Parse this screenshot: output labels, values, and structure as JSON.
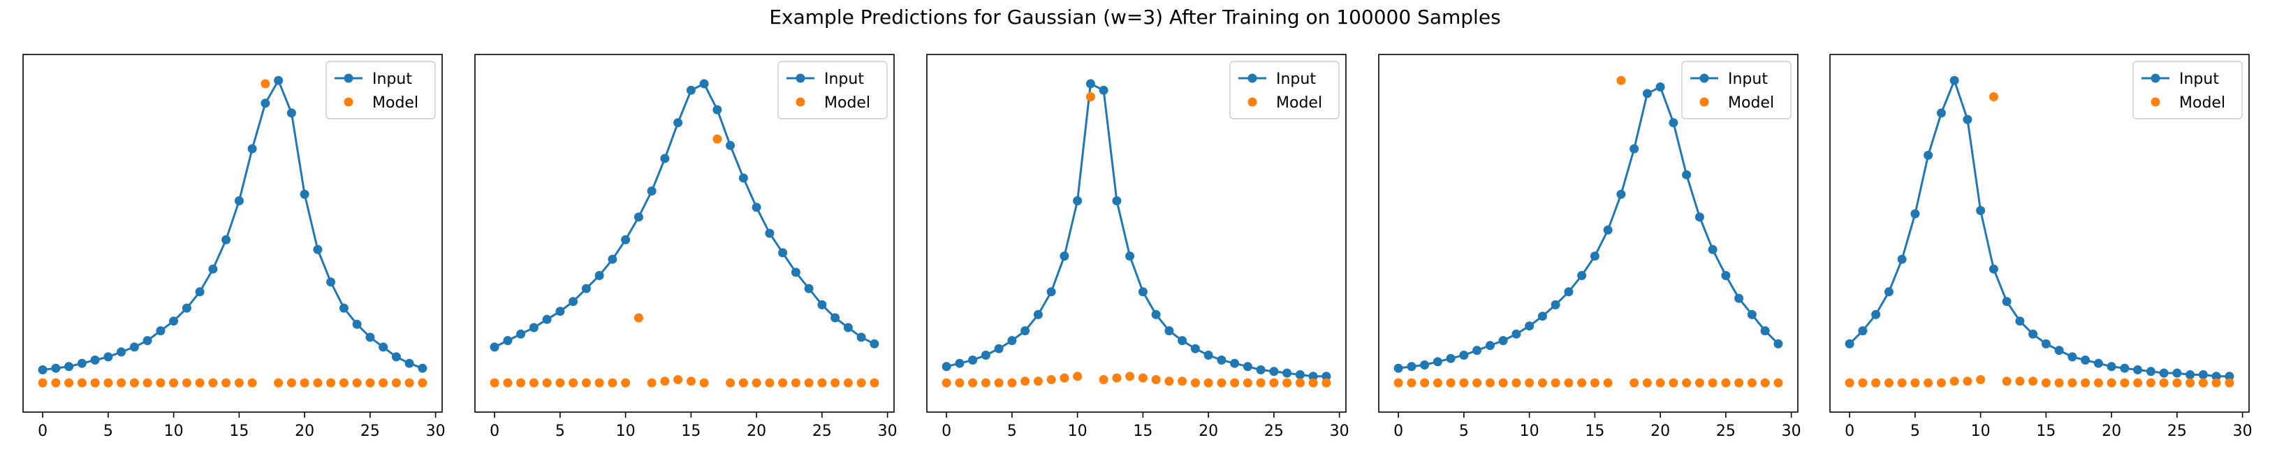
{
  "title": "Example Predictions for Gaussian (w=3) After Training on 100000 Samples",
  "colors": {
    "input": "#1f77b4",
    "model": "#ff7f0e"
  },
  "chart_data": [
    {
      "type": "line",
      "xlim": [
        -1.5,
        30.5
      ],
      "ylim": [
        -0.05,
        1.05
      ],
      "xticks": [
        "0",
        "5",
        "10",
        "15",
        "20",
        "25",
        "30"
      ],
      "legend": {
        "placement": "top-right",
        "entries": [
          "Input",
          "Model"
        ]
      },
      "series": [
        {
          "name": "Input",
          "style": "line-marker",
          "x": [
            0,
            1,
            2,
            3,
            4,
            5,
            6,
            7,
            8,
            9,
            10,
            11,
            12,
            13,
            14,
            15,
            16,
            17,
            18,
            19,
            20,
            21,
            22,
            23,
            24,
            25,
            26,
            27,
            28,
            29
          ],
          "y": [
            0.08,
            0.085,
            0.09,
            0.1,
            0.11,
            0.12,
            0.135,
            0.15,
            0.17,
            0.2,
            0.23,
            0.27,
            0.32,
            0.39,
            0.48,
            0.6,
            0.76,
            0.9,
            0.97,
            0.87,
            0.62,
            0.45,
            0.35,
            0.27,
            0.22,
            0.18,
            0.15,
            0.12,
            0.1,
            0.085
          ]
        },
        {
          "name": "Model",
          "style": "marker",
          "x": [
            0,
            1,
            2,
            3,
            4,
            5,
            6,
            7,
            8,
            9,
            10,
            11,
            12,
            13,
            14,
            15,
            16,
            17,
            18,
            19,
            20,
            21,
            22,
            23,
            24,
            25,
            26,
            27,
            28,
            29
          ],
          "y": [
            0.04,
            0.04,
            0.04,
            0.04,
            0.04,
            0.04,
            0.04,
            0.04,
            0.04,
            0.04,
            0.04,
            0.04,
            0.04,
            0.04,
            0.04,
            0.04,
            0.04,
            0.96,
            0.04,
            0.04,
            0.04,
            0.04,
            0.04,
            0.04,
            0.04,
            0.04,
            0.04,
            0.04,
            0.04,
            0.04
          ]
        }
      ]
    },
    {
      "type": "line",
      "xlim": [
        -1.5,
        30.5
      ],
      "ylim": [
        -0.05,
        1.05
      ],
      "xticks": [
        "0",
        "5",
        "10",
        "15",
        "20",
        "25",
        "30"
      ],
      "legend": {
        "placement": "top-right",
        "entries": [
          "Input",
          "Model"
        ]
      },
      "series": [
        {
          "name": "Input",
          "style": "line-marker",
          "x": [
            0,
            1,
            2,
            3,
            4,
            5,
            6,
            7,
            8,
            9,
            10,
            11,
            12,
            13,
            14,
            15,
            16,
            17,
            18,
            19,
            20,
            21,
            22,
            23,
            24,
            25,
            26,
            27,
            28,
            29
          ],
          "y": [
            0.15,
            0.17,
            0.19,
            0.21,
            0.235,
            0.26,
            0.29,
            0.33,
            0.37,
            0.42,
            0.48,
            0.55,
            0.63,
            0.73,
            0.84,
            0.94,
            0.96,
            0.88,
            0.77,
            0.67,
            0.58,
            0.5,
            0.44,
            0.38,
            0.33,
            0.28,
            0.24,
            0.21,
            0.18,
            0.16
          ]
        },
        {
          "name": "Model",
          "style": "marker",
          "x": [
            0,
            1,
            2,
            3,
            4,
            5,
            6,
            7,
            8,
            9,
            10,
            11,
            12,
            13,
            14,
            15,
            16,
            17,
            18,
            19,
            20,
            21,
            22,
            23,
            24,
            25,
            26,
            27,
            28,
            29
          ],
          "y": [
            0.04,
            0.04,
            0.04,
            0.04,
            0.04,
            0.04,
            0.04,
            0.04,
            0.04,
            0.04,
            0.04,
            0.24,
            0.04,
            0.045,
            0.05,
            0.045,
            0.04,
            0.79,
            0.04,
            0.04,
            0.04,
            0.04,
            0.04,
            0.04,
            0.04,
            0.04,
            0.04,
            0.04,
            0.04,
            0.04
          ]
        }
      ]
    },
    {
      "type": "line",
      "xlim": [
        -1.5,
        30.5
      ],
      "ylim": [
        -0.05,
        1.05
      ],
      "xticks": [
        "0",
        "5",
        "10",
        "15",
        "20",
        "25",
        "30"
      ],
      "legend": {
        "placement": "top-right",
        "entries": [
          "Input",
          "Model"
        ]
      },
      "series": [
        {
          "name": "Input",
          "style": "line-marker",
          "x": [
            0,
            1,
            2,
            3,
            4,
            5,
            6,
            7,
            8,
            9,
            10,
            11,
            12,
            13,
            14,
            15,
            16,
            17,
            18,
            19,
            20,
            21,
            22,
            23,
            24,
            25,
            26,
            27,
            28,
            29
          ],
          "y": [
            0.09,
            0.1,
            0.11,
            0.125,
            0.145,
            0.17,
            0.2,
            0.25,
            0.32,
            0.43,
            0.6,
            0.96,
            0.94,
            0.6,
            0.43,
            0.32,
            0.25,
            0.2,
            0.17,
            0.145,
            0.125,
            0.11,
            0.1,
            0.09,
            0.08,
            0.075,
            0.07,
            0.065,
            0.06,
            0.06
          ]
        },
        {
          "name": "Model",
          "style": "marker",
          "x": [
            0,
            1,
            2,
            3,
            4,
            5,
            6,
            7,
            8,
            9,
            10,
            11,
            12,
            13,
            14,
            15,
            16,
            17,
            18,
            19,
            20,
            21,
            22,
            23,
            24,
            25,
            26,
            27,
            28,
            29
          ],
          "y": [
            0.04,
            0.04,
            0.04,
            0.04,
            0.04,
            0.04,
            0.045,
            0.045,
            0.05,
            0.055,
            0.06,
            0.92,
            0.05,
            0.055,
            0.06,
            0.055,
            0.05,
            0.045,
            0.045,
            0.04,
            0.04,
            0.04,
            0.04,
            0.04,
            0.04,
            0.04,
            0.04,
            0.04,
            0.04,
            0.04
          ]
        }
      ]
    },
    {
      "type": "line",
      "xlim": [
        -1.5,
        30.5
      ],
      "ylim": [
        -0.05,
        1.05
      ],
      "xticks": [
        "0",
        "5",
        "10",
        "15",
        "20",
        "25",
        "30"
      ],
      "legend": {
        "placement": "top-right",
        "entries": [
          "Input",
          "Model"
        ]
      },
      "series": [
        {
          "name": "Input",
          "style": "line-marker",
          "x": [
            0,
            1,
            2,
            3,
            4,
            5,
            6,
            7,
            8,
            9,
            10,
            11,
            12,
            13,
            14,
            15,
            16,
            17,
            18,
            19,
            20,
            21,
            22,
            23,
            24,
            25,
            26,
            27,
            28,
            29
          ],
          "y": [
            0.085,
            0.09,
            0.095,
            0.105,
            0.115,
            0.125,
            0.14,
            0.155,
            0.17,
            0.19,
            0.215,
            0.245,
            0.28,
            0.32,
            0.37,
            0.43,
            0.51,
            0.62,
            0.76,
            0.93,
            0.95,
            0.84,
            0.68,
            0.55,
            0.45,
            0.37,
            0.3,
            0.25,
            0.2,
            0.16
          ]
        },
        {
          "name": "Model",
          "style": "marker",
          "x": [
            0,
            1,
            2,
            3,
            4,
            5,
            6,
            7,
            8,
            9,
            10,
            11,
            12,
            13,
            14,
            15,
            16,
            17,
            18,
            19,
            20,
            21,
            22,
            23,
            24,
            25,
            26,
            27,
            28,
            29
          ],
          "y": [
            0.04,
            0.04,
            0.04,
            0.04,
            0.04,
            0.04,
            0.04,
            0.04,
            0.04,
            0.04,
            0.04,
            0.04,
            0.04,
            0.04,
            0.04,
            0.04,
            0.04,
            0.97,
            0.04,
            0.04,
            0.04,
            0.04,
            0.04,
            0.04,
            0.04,
            0.04,
            0.04,
            0.04,
            0.04,
            0.04
          ]
        }
      ]
    },
    {
      "type": "line",
      "xlim": [
        -1.5,
        30.5
      ],
      "ylim": [
        -0.05,
        1.05
      ],
      "xticks": [
        "0",
        "5",
        "10",
        "15",
        "20",
        "25",
        "30"
      ],
      "legend": {
        "placement": "top-right",
        "entries": [
          "Input",
          "Model"
        ]
      },
      "series": [
        {
          "name": "Input",
          "style": "line-marker",
          "x": [
            0,
            1,
            2,
            3,
            4,
            5,
            6,
            7,
            8,
            9,
            10,
            11,
            12,
            13,
            14,
            15,
            16,
            17,
            18,
            19,
            20,
            21,
            22,
            23,
            24,
            25,
            26,
            27,
            28,
            29
          ],
          "y": [
            0.16,
            0.2,
            0.25,
            0.32,
            0.42,
            0.56,
            0.74,
            0.87,
            0.97,
            0.85,
            0.57,
            0.39,
            0.29,
            0.23,
            0.19,
            0.16,
            0.14,
            0.12,
            0.11,
            0.1,
            0.09,
            0.085,
            0.08,
            0.075,
            0.07,
            0.07,
            0.065,
            0.065,
            0.06,
            0.06
          ]
        },
        {
          "name": "Model",
          "style": "marker",
          "x": [
            0,
            1,
            2,
            3,
            4,
            5,
            6,
            7,
            8,
            9,
            10,
            11,
            12,
            13,
            14,
            15,
            16,
            17,
            18,
            19,
            20,
            21,
            22,
            23,
            24,
            25,
            26,
            27,
            28,
            29
          ],
          "y": [
            0.04,
            0.04,
            0.04,
            0.04,
            0.04,
            0.04,
            0.04,
            0.04,
            0.045,
            0.045,
            0.05,
            0.92,
            0.045,
            0.045,
            0.045,
            0.04,
            0.04,
            0.04,
            0.04,
            0.04,
            0.04,
            0.04,
            0.04,
            0.04,
            0.04,
            0.04,
            0.04,
            0.04,
            0.04,
            0.04
          ]
        }
      ]
    }
  ]
}
